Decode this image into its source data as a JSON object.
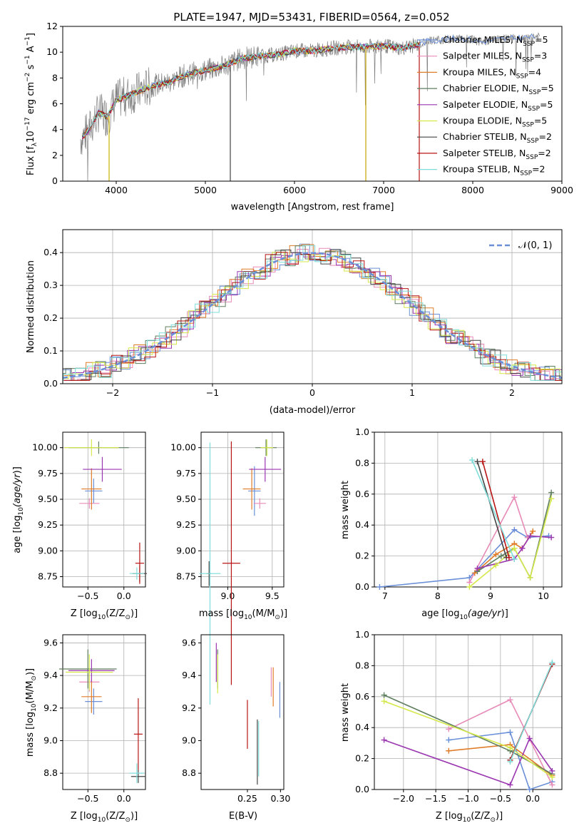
{
  "figure": {
    "title": "PLATE=1947, MJD=53431, FIBERID=0564, z=0.052"
  },
  "colors": {
    "Chabrier MILES": "#6a8fd8",
    "Salpeter MILES": "#e88bb8",
    "Kroupa MILES": "#e07c28",
    "Chabrier ELODIE": "#5f7f5f",
    "Salpeter ELODIE": "#9a36b0",
    "Kroupa ELODIE": "#d5e84a",
    "Chabrier STELIB": "#444444",
    "Salpeter STELIB": "#b81414",
    "Kroupa STELIB": "#7fdedb",
    "data": "#808080"
  },
  "chart_data": [
    {
      "id": "spectrum",
      "type": "line",
      "xlabel": "wavelength [Angstrom, rest frame]",
      "ylabel": "Flux [f_λ10^-17 erg cm^-2 s^-1 A^-1]",
      "xlim": [
        3400,
        9000
      ],
      "ylim": [
        0,
        12
      ],
      "xticks": [
        "4000",
        "5000",
        "6000",
        "7000",
        "8000",
        "9000"
      ],
      "yticks": [
        "0",
        "2",
        "4",
        "6",
        "8",
        "10",
        "12"
      ],
      "grid": false,
      "legend_position": "right",
      "legend": [
        {
          "label": "Chabrier MILES, N_SSP=5",
          "label_main": "Chabrier MILES, N",
          "label_sub": "SSP",
          "label_tail": "=5"
        },
        {
          "label": "Salpeter MILES, N_SSP=3",
          "label_main": "Salpeter MILES, N",
          "label_sub": "SSP",
          "label_tail": "=3"
        },
        {
          "label": "Kroupa MILES, N_SSP=4",
          "label_main": "Kroupa MILES, N",
          "label_sub": "SSP",
          "label_tail": "=4"
        },
        {
          "label": "Chabrier ELODIE, N_SSP=5",
          "label_main": "Chabrier ELODIE, N",
          "label_sub": "SSP",
          "label_tail": "=5"
        },
        {
          "label": "Salpeter ELODIE, N_SSP=5",
          "label_main": "Salpeter ELODIE, N",
          "label_sub": "SSP",
          "label_tail": "=5"
        },
        {
          "label": "Kroupa ELODIE, N_SSP=5",
          "label_main": "Kroupa ELODIE, N",
          "label_sub": "SSP",
          "label_tail": "=5"
        },
        {
          "label": "Chabrier STELIB, N_SSP=2",
          "label_main": "Chabrier STELIB, N",
          "label_sub": "SSP",
          "label_tail": "=2"
        },
        {
          "label": "Salpeter STELIB, N_SSP=2",
          "label_main": "Salpeter STELIB, N",
          "label_sub": "SSP",
          "label_tail": "=2"
        },
        {
          "label": "Kroupa STELIB, N_SSP=2",
          "label_main": "Kroupa STELIB, N",
          "label_sub": "SSP",
          "label_tail": "=2"
        }
      ],
      "data_trend": {
        "x": [
          3600,
          3700,
          3800,
          3900,
          4000,
          4200,
          4400,
          4600,
          4800,
          5000,
          5200,
          5400,
          5600,
          5800,
          6000,
          6200,
          6400,
          6600,
          6800,
          7000,
          7200,
          7400,
          7500,
          7700,
          7900,
          8100,
          8300,
          8500,
          8700
        ],
        "y": [
          3.3,
          4.0,
          5.3,
          5.0,
          6.3,
          6.8,
          7.4,
          7.7,
          8.3,
          8.6,
          8.9,
          9.5,
          9.7,
          9.8,
          10.1,
          10.1,
          10.3,
          10.4,
          10.4,
          10.5,
          10.3,
          10.6,
          10.9,
          11.0,
          11.1,
          10.8,
          11.0,
          11.1,
          11.2
        ]
      }
    },
    {
      "id": "residuals",
      "type": "line",
      "xlabel": "(data-model)/error",
      "ylabel": "Normed distribution",
      "xlim": [
        -2.5,
        2.5
      ],
      "ylim": [
        0,
        0.47
      ],
      "xticks": [
        "−2",
        "−1",
        "0",
        "1",
        "2"
      ],
      "yticks": [
        "0.0",
        "0.1",
        "0.2",
        "0.3",
        "0.4"
      ],
      "grid": true,
      "legend_position": "top-right",
      "legend_label": "𝒩(0, 1)",
      "reference_curve": "standard normal density"
    },
    {
      "id": "age_vs_Z",
      "type": "scatter",
      "xlabel_main": "Z [log",
      "xlabel_sub": "10",
      "xlabel_tail": "(Z/Z",
      "xlabel_sym": "⊙",
      "xlabel_end": ")]",
      "ylabel": "age  [log10(age/yr)]",
      "xlim": [
        -0.85,
        0.3
      ],
      "ylim": [
        8.65,
        10.15
      ],
      "xticks": [
        "−0.5",
        "0.0"
      ],
      "yticks": [
        "8.75",
        "9.00",
        "9.25",
        "9.50",
        "9.75",
        "10.00"
      ],
      "grid": true,
      "points": [
        {
          "model": "Chabrier MILES",
          "x": -0.42,
          "y": 9.58,
          "xerr": 0.12,
          "yerr": 0.12
        },
        {
          "model": "Salpeter MILES",
          "x": -0.48,
          "y": 9.46,
          "xerr": 0.14,
          "yerr": 0.05
        },
        {
          "model": "Kroupa MILES",
          "x": -0.45,
          "y": 9.6,
          "xerr": 0.14,
          "yerr": 0.2
        },
        {
          "model": "Chabrier ELODIE",
          "x": -0.35,
          "y": 10.0,
          "xerr": 0.42,
          "yerr": 0.06
        },
        {
          "model": "Salpeter ELODIE",
          "x": -0.3,
          "y": 9.79,
          "xerr": 0.27,
          "yerr": 0.12
        },
        {
          "model": "Kroupa ELODIE",
          "x": -0.45,
          "y": 10.0,
          "xerr": 0.38,
          "yerr": 0.08
        },
        {
          "model": "Chabrier STELIB",
          "x": 0.22,
          "y": 8.78,
          "xerr": 0.1,
          "yerr": 0.08
        },
        {
          "model": "Salpeter STELIB",
          "x": 0.22,
          "y": 8.88,
          "xerr": 0.06,
          "yerr": 0.2
        },
        {
          "model": "Kroupa STELIB",
          "x": 0.18,
          "y": 8.78,
          "xerr": 0.1,
          "yerr": 0.06
        }
      ]
    },
    {
      "id": "age_vs_mass",
      "type": "scatter",
      "xlabel_main": "mass [log",
      "xlabel_sub": "10",
      "xlabel_tail": "(M/M",
      "xlabel_sym": "⊙",
      "xlabel_end": ")]",
      "ylabel": "",
      "xlim": [
        8.7,
        9.63
      ],
      "ylim": [
        8.65,
        10.15
      ],
      "xticks": [
        "9.0",
        "9.5"
      ],
      "yticks": [
        "8.75",
        "9.00",
        "9.25",
        "9.50",
        "9.75",
        "10.00"
      ],
      "grid": true,
      "points": [
        {
          "model": "Chabrier MILES",
          "x": 9.3,
          "y": 9.58,
          "xerr": 0.07,
          "yerr": 0.24
        },
        {
          "model": "Salpeter MILES",
          "x": 9.36,
          "y": 9.46,
          "xerr": 0.07,
          "yerr": 0.05
        },
        {
          "model": "Kroupa MILES",
          "x": 9.27,
          "y": 9.6,
          "xerr": 0.1,
          "yerr": 0.2
        },
        {
          "model": "Chabrier ELODIE",
          "x": 9.43,
          "y": 10.0,
          "xerr": 0.12,
          "yerr": 0.08
        },
        {
          "model": "Salpeter ELODIE",
          "x": 9.42,
          "y": 9.79,
          "xerr": 0.18,
          "yerr": 0.12
        },
        {
          "model": "Kroupa ELODIE",
          "x": 9.44,
          "y": 10.0,
          "xerr": 0.07,
          "yerr": 0.08
        },
        {
          "model": "Chabrier STELIB",
          "x": 8.79,
          "y": 8.78,
          "xerr": 0.02,
          "yerr": 0.12
        },
        {
          "model": "Salpeter STELIB",
          "x": 9.04,
          "y": 8.88,
          "xerr": 0.1,
          "yerr": 1.18
        },
        {
          "model": "Kroupa STELIB",
          "x": 8.8,
          "y": 8.78,
          "xerr": 0.12,
          "yerr": 1.27
        }
      ]
    },
    {
      "id": "weight_vs_age",
      "type": "line",
      "xlabel": "age  [log10(age/yr)]",
      "ylabel": "mass weight",
      "xlim": [
        6.8,
        10.35
      ],
      "ylim": [
        0,
        1
      ],
      "xticks": [
        "7",
        "8",
        "9",
        "10"
      ],
      "yticks": [
        "0.0",
        "0.2",
        "0.4",
        "0.6",
        "0.8",
        "1.0"
      ],
      "grid": true,
      "series": [
        {
          "model": "Chabrier MILES",
          "x": [
            6.9,
            8.6,
            9.45,
            9.7,
            10.1
          ],
          "y": [
            0.0,
            0.06,
            0.37,
            0.32,
            0.33
          ]
        },
        {
          "model": "Salpeter MILES",
          "x": [
            8.6,
            9.45,
            9.7
          ],
          "y": [
            0.03,
            0.58,
            0.32
          ]
        },
        {
          "model": "Kroupa MILES",
          "x": [
            8.7,
            9.1,
            9.45,
            9.6,
            9.8
          ],
          "y": [
            0.09,
            0.21,
            0.28,
            0.25,
            0.36
          ]
        },
        {
          "model": "Chabrier ELODIE",
          "x": [
            8.75,
            9.2,
            9.45,
            9.75,
            10.15
          ],
          "y": [
            0.1,
            0.2,
            0.25,
            0.06,
            0.61
          ]
        },
        {
          "model": "Salpeter ELODIE",
          "x": [
            8.75,
            9.45,
            9.6,
            9.75,
            10.15
          ],
          "y": [
            0.12,
            0.18,
            0.25,
            0.33,
            0.32
          ]
        },
        {
          "model": "Kroupa ELODIE",
          "x": [
            8.6,
            9.1,
            9.45,
            9.75,
            10.15
          ],
          "y": [
            0.0,
            0.14,
            0.25,
            0.06,
            0.57
          ]
        },
        {
          "model": "Chabrier STELIB",
          "x": [
            8.75,
            9.3
          ],
          "y": [
            0.81,
            0.19
          ]
        },
        {
          "model": "Salpeter STELIB",
          "x": [
            8.85,
            9.35
          ],
          "y": [
            0.81,
            0.19
          ]
        },
        {
          "model": "Kroupa STELIB",
          "x": [
            8.65,
            9.45
          ],
          "y": [
            0.82,
            0.18
          ]
        }
      ]
    },
    {
      "id": "mass_vs_Z",
      "type": "scatter",
      "xlabel_main": "Z [log",
      "xlabel_sub": "10",
      "xlabel_tail": "(Z/Z",
      "xlabel_sym": "⊙",
      "xlabel_end": ")]",
      "ylabel": "mass [log10(M/M⊙)]",
      "xlim": [
        -0.85,
        0.3
      ],
      "ylim": [
        8.7,
        9.65
      ],
      "xticks": [
        "−0.5",
        "0.0"
      ],
      "yticks": [
        "8.8",
        "9.0",
        "9.2",
        "9.4",
        "9.6"
      ],
      "grid": true,
      "points": [
        {
          "model": "Chabrier MILES",
          "x": -0.42,
          "y": 9.24,
          "xerr": 0.12,
          "yerr": 0.08
        },
        {
          "model": "Salpeter MILES",
          "x": -0.48,
          "y": 9.36,
          "xerr": 0.14,
          "yerr": 0.06
        },
        {
          "model": "Kroupa MILES",
          "x": -0.45,
          "y": 9.27,
          "xerr": 0.14,
          "yerr": 0.1
        },
        {
          "model": "Chabrier ELODIE",
          "x": -0.5,
          "y": 9.44,
          "xerr": 0.4,
          "yerr": 0.12
        },
        {
          "model": "Salpeter ELODIE",
          "x": -0.45,
          "y": 9.43,
          "xerr": 0.32,
          "yerr": 0.07
        },
        {
          "model": "Kroupa ELODIE",
          "x": -0.48,
          "y": 9.42,
          "xerr": 0.33,
          "yerr": 0.11
        },
        {
          "model": "Chabrier STELIB",
          "x": 0.2,
          "y": 8.78,
          "xerr": 0.1,
          "yerr": 0.04
        },
        {
          "model": "Salpeter STELIB",
          "x": 0.2,
          "y": 9.04,
          "xerr": 0.06,
          "yerr": 0.22
        },
        {
          "model": "Kroupa STELIB",
          "x": 0.18,
          "y": 8.8,
          "xerr": 0.1,
          "yerr": 0.06
        }
      ]
    },
    {
      "id": "mass_vs_EBV",
      "type": "scatter",
      "xlabel": "E(B-V)",
      "ylabel": "",
      "xlim": [
        0.18,
        0.305
      ],
      "ylim": [
        8.7,
        9.65
      ],
      "xticks": [
        "0.25",
        "0.30"
      ],
      "yticks": [
        "8.8",
        "9.0",
        "9.2",
        "9.4",
        "9.6"
      ],
      "grid": false,
      "points": [
        {
          "model": "Chabrier MILES",
          "x": 0.299,
          "y": 9.25,
          "yerr": 0.11
        },
        {
          "model": "Salpeter MILES",
          "x": 0.286,
          "y": 9.36,
          "yerr": 0.09
        },
        {
          "model": "Kroupa MILES",
          "x": 0.289,
          "y": 9.33,
          "yerr": 0.12
        },
        {
          "model": "Chabrier ELODIE",
          "x": 0.205,
          "y": 9.44,
          "yerr": 0.12
        },
        {
          "model": "Salpeter ELODIE",
          "x": 0.203,
          "y": 9.48,
          "yerr": 0.12
        },
        {
          "model": "Kroupa ELODIE",
          "x": 0.205,
          "y": 9.41,
          "yerr": 0.12
        },
        {
          "model": "Chabrier STELIB",
          "x": 0.265,
          "y": 8.93,
          "yerr": 0.2
        },
        {
          "model": "Salpeter STELIB",
          "x": 0.25,
          "y": 9.1,
          "yerr": 0.15
        },
        {
          "model": "Kroupa STELIB",
          "x": 0.267,
          "y": 8.95,
          "yerr": 0.17
        }
      ]
    },
    {
      "id": "weight_vs_Z",
      "type": "line",
      "xlabel_main": "Z [log",
      "xlabel_sub": "10",
      "xlabel_tail": "(Z/Z",
      "xlabel_sym": "⊙",
      "xlabel_end": ")]",
      "ylabel": "mass weight",
      "xlim": [
        -2.45,
        0.45
      ],
      "ylim": [
        0,
        1
      ],
      "xticks": [
        "−2.0",
        "−1.5",
        "−1.0",
        "−0.5",
        "0.0"
      ],
      "yticks": [
        "0.0",
        "0.2",
        "0.4",
        "0.6",
        "0.8",
        "1.0"
      ],
      "grid": true,
      "series": [
        {
          "model": "Chabrier MILES",
          "x": [
            -1.3,
            -0.35,
            -0.05,
            0.3
          ],
          "y": [
            0.32,
            0.37,
            0.0,
            0.05
          ]
        },
        {
          "model": "Salpeter MILES",
          "x": [
            -1.3,
            -0.35,
            0.3
          ],
          "y": [
            0.39,
            0.58,
            0.03
          ]
        },
        {
          "model": "Kroupa MILES",
          "x": [
            -1.3,
            -0.35,
            0.3
          ],
          "y": [
            0.25,
            0.29,
            0.09
          ]
        },
        {
          "model": "Chabrier ELODIE",
          "x": [
            -2.3,
            -0.35,
            0.3
          ],
          "y": [
            0.61,
            0.25,
            0.1
          ]
        },
        {
          "model": "Salpeter ELODIE",
          "x": [
            -2.3,
            -0.35,
            -0.05,
            0.3
          ],
          "y": [
            0.32,
            0.03,
            0.33,
            0.12
          ]
        },
        {
          "model": "Kroupa ELODIE",
          "x": [
            -2.3,
            -0.35,
            0.3
          ],
          "y": [
            0.57,
            0.27,
            0.08
          ]
        },
        {
          "model": "Chabrier STELIB",
          "x": [
            -0.35,
            0.3
          ],
          "y": [
            0.19,
            0.81
          ]
        },
        {
          "model": "Salpeter STELIB",
          "x": [
            -0.35,
            0.3
          ],
          "y": [
            0.19,
            0.81
          ]
        },
        {
          "model": "Kroupa STELIB",
          "x": [
            -0.35,
            0.3
          ],
          "y": [
            0.18,
            0.82
          ]
        }
      ]
    }
  ]
}
